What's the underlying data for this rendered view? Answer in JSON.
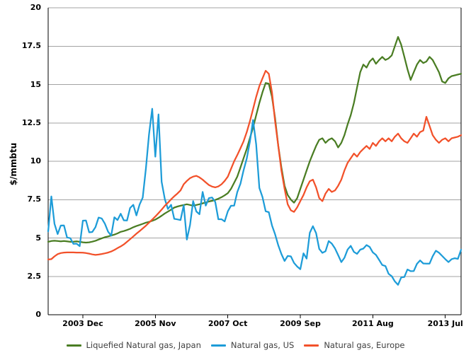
{
  "chart_data": {
    "type": "line",
    "title": "",
    "ylabel": "$/mmbtu",
    "xlabel": "",
    "ylim": [
      0,
      20
    ],
    "grid": "horizontal",
    "legend_position": "bottom-center",
    "x_unit": "month",
    "x_start": "2003-01",
    "x_end": "2013-12",
    "x_interval": "monthly",
    "points_per_series": 132,
    "y_ticks": [
      {
        "value": 0,
        "label": "0"
      },
      {
        "value": 2.5,
        "label": "2.5"
      },
      {
        "value": 5,
        "label": "5"
      },
      {
        "value": 7.5,
        "label": "7.5"
      },
      {
        "value": 10,
        "label": "10"
      },
      {
        "value": 12.5,
        "label": "12.5"
      },
      {
        "value": 15,
        "label": "15"
      },
      {
        "value": 17.5,
        "label": "17.5"
      },
      {
        "value": 20,
        "label": "20"
      }
    ],
    "x_ticks": [
      {
        "index": 11,
        "label": "2003 Dec"
      },
      {
        "index": 34,
        "label": "2005 Nov"
      },
      {
        "index": 57,
        "label": "2007 Oct"
      },
      {
        "index": 80,
        "label": "2009 Sep"
      },
      {
        "index": 103,
        "label": "2011 Aug"
      },
      {
        "index": 126,
        "label": "2013 Jul"
      }
    ],
    "series": [
      {
        "id": "japan",
        "name": "Liquefied Natural gas, Japan",
        "color": "#4a7d23",
        "values": [
          4.75,
          4.8,
          4.82,
          4.8,
          4.78,
          4.8,
          4.78,
          4.75,
          4.76,
          4.78,
          4.75,
          4.72,
          4.7,
          4.72,
          4.76,
          4.82,
          4.9,
          4.98,
          5.05,
          5.1,
          5.16,
          5.22,
          5.3,
          5.4,
          5.45,
          5.52,
          5.6,
          5.7,
          5.78,
          5.85,
          5.92,
          6.0,
          6.05,
          6.12,
          6.2,
          6.32,
          6.45,
          6.6,
          6.72,
          6.85,
          6.98,
          7.05,
          7.1,
          7.15,
          7.2,
          7.15,
          7.1,
          7.15,
          7.2,
          7.26,
          7.32,
          7.38,
          7.42,
          7.48,
          7.56,
          7.66,
          7.78,
          7.92,
          8.2,
          8.6,
          9.0,
          9.6,
          10.2,
          10.8,
          11.5,
          12.2,
          13.0,
          13.8,
          14.5,
          15.1,
          15.05,
          14.2,
          12.8,
          11.0,
          9.6,
          8.4,
          7.8,
          7.5,
          7.3,
          7.6,
          8.2,
          8.8,
          9.4,
          10.0,
          10.5,
          11.0,
          11.4,
          11.5,
          11.2,
          11.4,
          11.5,
          11.3,
          10.9,
          11.2,
          11.7,
          12.4,
          13.0,
          13.8,
          14.8,
          15.8,
          16.3,
          16.1,
          16.5,
          16.7,
          16.35,
          16.6,
          16.8,
          16.6,
          16.7,
          16.9,
          17.5,
          18.1,
          17.6,
          16.8,
          16.0,
          15.3,
          15.8,
          16.3,
          16.6,
          16.4,
          16.5,
          16.8,
          16.6,
          16.2,
          15.8,
          15.2,
          15.1,
          15.4,
          15.55,
          15.6,
          15.65,
          15.7
        ]
      },
      {
        "id": "us",
        "name": "Natural gas, US",
        "color": "#1d9cd8",
        "values": [
          5.43,
          7.71,
          5.93,
          5.26,
          5.81,
          5.82,
          5.03,
          4.99,
          4.62,
          4.63,
          4.47,
          6.13,
          6.14,
          5.37,
          5.39,
          5.71,
          6.33,
          6.27,
          5.93,
          5.41,
          5.15,
          6.35,
          6.17,
          6.58,
          6.15,
          6.14,
          6.96,
          7.16,
          6.47,
          7.18,
          7.63,
          9.53,
          11.75,
          13.42,
          10.3,
          13.05,
          8.66,
          7.54,
          6.89,
          7.16,
          6.25,
          6.21,
          6.17,
          7.14,
          4.9,
          5.85,
          7.4,
          6.73,
          6.55,
          8.0,
          7.11,
          7.6,
          7.64,
          7.35,
          6.22,
          6.22,
          6.08,
          6.74,
          7.1,
          7.11,
          7.99,
          8.54,
          9.41,
          10.18,
          11.27,
          12.69,
          11.09,
          8.26,
          7.67,
          6.74,
          6.68,
          5.82,
          5.24,
          4.52,
          3.96,
          3.5,
          3.83,
          3.8,
          3.38,
          3.14,
          2.97,
          4.0,
          3.66,
          5.34,
          5.77,
          5.32,
          4.29,
          4.03,
          4.14,
          4.8,
          4.63,
          4.32,
          3.89,
          3.43,
          3.71,
          4.25,
          4.49,
          4.09,
          3.97,
          4.24,
          4.31,
          4.54,
          4.42,
          4.06,
          3.9,
          3.57,
          3.24,
          3.17,
          2.67,
          2.51,
          2.17,
          1.95,
          2.43,
          2.46,
          2.95,
          2.84,
          2.85,
          3.32,
          3.54,
          3.34,
          3.33,
          3.33,
          3.81,
          4.17,
          4.04,
          3.83,
          3.62,
          3.43,
          3.62,
          3.68,
          3.64,
          4.24
        ]
      },
      {
        "id": "europe",
        "name": "Natural gas, Europe",
        "color": "#f2512a",
        "values": [
          3.6,
          3.62,
          3.8,
          3.95,
          4.02,
          4.05,
          4.06,
          4.06,
          4.06,
          4.05,
          4.05,
          4.04,
          4.02,
          3.98,
          3.93,
          3.9,
          3.92,
          3.96,
          4.0,
          4.05,
          4.12,
          4.22,
          4.34,
          4.45,
          4.58,
          4.75,
          4.92,
          5.1,
          5.28,
          5.45,
          5.62,
          5.8,
          6.0,
          6.2,
          6.4,
          6.62,
          6.85,
          7.1,
          7.3,
          7.52,
          7.72,
          7.9,
          8.1,
          8.5,
          8.72,
          8.9,
          9.0,
          9.05,
          8.95,
          8.8,
          8.62,
          8.45,
          8.35,
          8.3,
          8.36,
          8.5,
          8.72,
          9.0,
          9.5,
          10.0,
          10.4,
          10.85,
          11.3,
          11.9,
          12.6,
          13.4,
          14.2,
          14.9,
          15.4,
          15.9,
          15.7,
          14.5,
          12.6,
          11.0,
          9.4,
          8.2,
          7.2,
          6.8,
          6.7,
          7.0,
          7.4,
          7.8,
          8.3,
          8.7,
          8.8,
          8.3,
          7.6,
          7.4,
          7.9,
          8.2,
          8.0,
          8.1,
          8.4,
          8.8,
          9.4,
          9.9,
          10.2,
          10.5,
          10.3,
          10.6,
          10.8,
          11.0,
          10.8,
          11.2,
          11.0,
          11.3,
          11.5,
          11.3,
          11.5,
          11.3,
          11.6,
          11.8,
          11.5,
          11.3,
          11.2,
          11.5,
          11.8,
          11.6,
          11.9,
          12.0,
          12.9,
          12.3,
          11.7,
          11.4,
          11.2,
          11.4,
          11.5,
          11.3,
          11.5,
          11.55,
          11.6,
          11.7
        ]
      }
    ]
  },
  "colors": {
    "background": "#ffffff",
    "gridline": "#a3a3a3",
    "axis": "#000000",
    "tick_text": "#000000",
    "legend_text": "#3f3f3f"
  }
}
